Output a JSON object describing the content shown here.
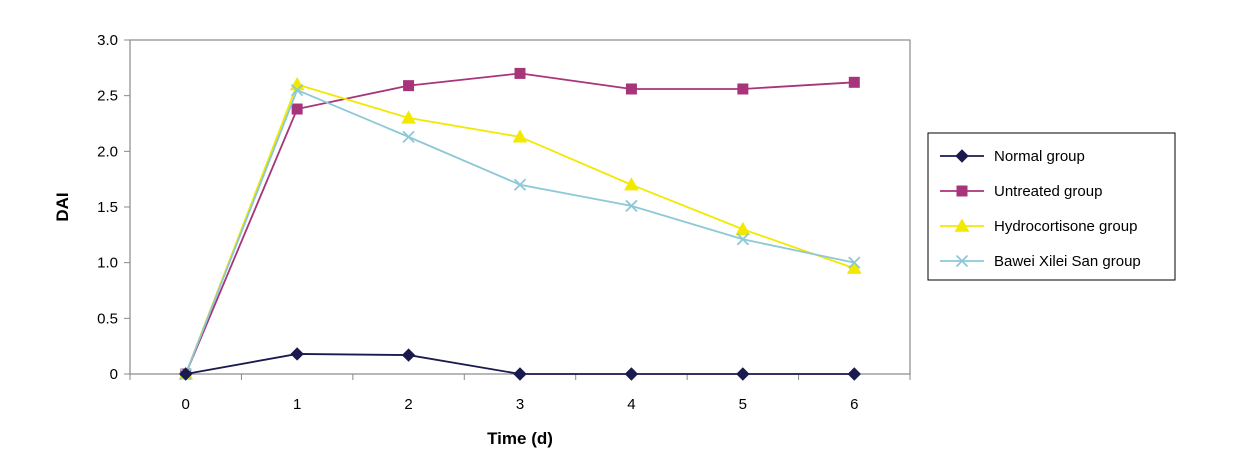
{
  "chart_data": {
    "type": "line",
    "title": "",
    "xlabel": "Time (d)",
    "ylabel": "DAI",
    "x": [
      0,
      1,
      2,
      3,
      4,
      5,
      6
    ],
    "x_tick_labels": [
      "0",
      "1",
      "2",
      "3",
      "4",
      "5",
      "6"
    ],
    "ylim": [
      0,
      3.0
    ],
    "y_ticks": [
      0,
      0.5,
      1.0,
      1.5,
      2.0,
      2.5,
      3.0
    ],
    "y_tick_labels": [
      "0",
      "0.5",
      "1.0",
      "1.5",
      "2.0",
      "2.5",
      "3.0"
    ],
    "grid": false,
    "legend_position": "right",
    "series": [
      {
        "name": "Normal group",
        "color": "#1a1a4e",
        "marker": "diamond",
        "values": [
          0,
          0.18,
          0.17,
          0,
          0,
          0,
          0
        ]
      },
      {
        "name": "Untreated group",
        "color": "#a8347a",
        "marker": "square",
        "values": [
          0,
          2.38,
          2.59,
          2.7,
          2.56,
          2.56,
          2.62
        ]
      },
      {
        "name": "Hydrocortisone group",
        "color": "#f2e800",
        "marker": "triangle",
        "values": [
          0,
          2.6,
          2.3,
          2.13,
          1.7,
          1.3,
          0.95
        ]
      },
      {
        "name": "Bawei Xilei San group",
        "color": "#8cc8d8",
        "marker": "x",
        "values": [
          0,
          2.55,
          2.13,
          1.7,
          1.51,
          1.21,
          1.0
        ]
      }
    ]
  }
}
